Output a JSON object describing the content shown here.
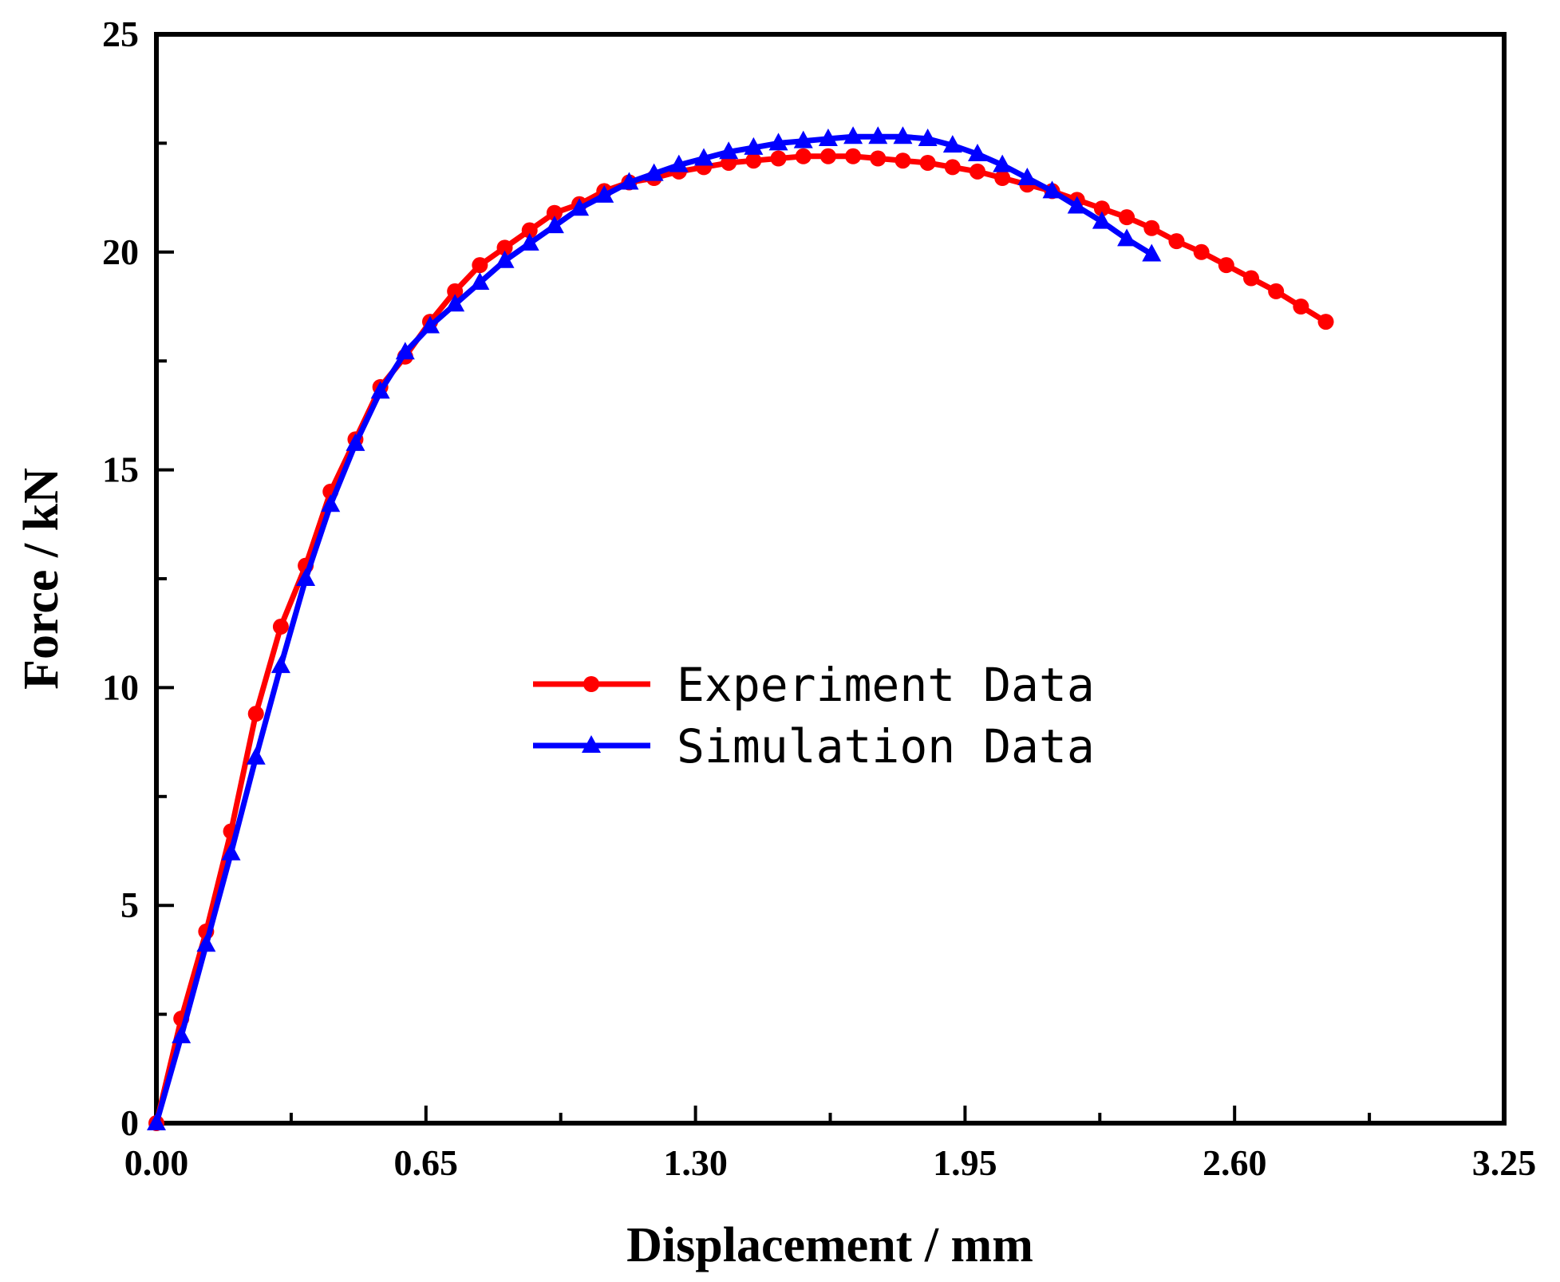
{
  "chart_data": {
    "type": "line",
    "title": "",
    "xlabel": "Displacement / mm",
    "ylabel": "Force / kN",
    "xlim": [
      0,
      3.25
    ],
    "ylim": [
      0,
      25
    ],
    "xticks": [
      0,
      0.65,
      1.3,
      1.95,
      2.6,
      3.25
    ],
    "xtick_labels": [
      "0.00",
      "0.65",
      "1.30",
      "1.95",
      "2.60",
      "3.25"
    ],
    "yticks": [
      0,
      5,
      10,
      15,
      20,
      25
    ],
    "ytick_labels": [
      "0",
      "5",
      "10",
      "15",
      "20",
      "25"
    ],
    "grid": false,
    "legend_position": "center",
    "series": [
      {
        "name": "Experiment Data",
        "color": "#ff0000",
        "marker": "circle",
        "x": [
          0,
          0.06,
          0.12,
          0.18,
          0.24,
          0.3,
          0.36,
          0.42,
          0.48,
          0.54,
          0.6,
          0.66,
          0.72,
          0.78,
          0.84,
          0.9,
          0.96,
          1.02,
          1.08,
          1.14,
          1.2,
          1.26,
          1.32,
          1.38,
          1.44,
          1.5,
          1.56,
          1.62,
          1.68,
          1.74,
          1.8,
          1.86,
          1.92,
          1.98,
          2.04,
          2.1,
          2.16,
          2.22,
          2.28,
          2.34,
          2.4,
          2.46,
          2.52,
          2.58,
          2.64,
          2.7,
          2.76,
          2.82
        ],
        "y": [
          0,
          2.4,
          4.4,
          6.7,
          9.4,
          11.4,
          12.8,
          14.5,
          15.7,
          16.9,
          17.6,
          18.4,
          19.1,
          19.7,
          20.1,
          20.5,
          20.9,
          21.1,
          21.4,
          21.6,
          21.7,
          21.85,
          21.95,
          22.05,
          22.1,
          22.15,
          22.2,
          22.2,
          22.2,
          22.15,
          22.1,
          22.05,
          21.95,
          21.85,
          21.7,
          21.55,
          21.4,
          21.2,
          21.0,
          20.8,
          20.55,
          20.25,
          20.0,
          19.7,
          19.4,
          19.1,
          18.75,
          18.4
        ]
      },
      {
        "name": "Simulation Data",
        "color": "#0000ff",
        "marker": "triangle",
        "x": [
          0,
          0.06,
          0.12,
          0.18,
          0.24,
          0.3,
          0.36,
          0.42,
          0.48,
          0.54,
          0.6,
          0.66,
          0.72,
          0.78,
          0.84,
          0.9,
          0.96,
          1.02,
          1.08,
          1.14,
          1.2,
          1.26,
          1.32,
          1.38,
          1.44,
          1.5,
          1.56,
          1.62,
          1.68,
          1.74,
          1.8,
          1.86,
          1.92,
          1.98,
          2.04,
          2.1,
          2.16,
          2.22,
          2.28,
          2.34,
          2.4
        ],
        "y": [
          0,
          2.0,
          4.1,
          6.2,
          8.4,
          10.5,
          12.5,
          14.2,
          15.6,
          16.8,
          17.7,
          18.3,
          18.8,
          19.3,
          19.8,
          20.2,
          20.6,
          21.0,
          21.3,
          21.6,
          21.8,
          22.0,
          22.15,
          22.3,
          22.4,
          22.5,
          22.55,
          22.6,
          22.65,
          22.65,
          22.65,
          22.6,
          22.45,
          22.25,
          22.0,
          21.7,
          21.4,
          21.05,
          20.7,
          20.3,
          19.95
        ]
      }
    ]
  }
}
